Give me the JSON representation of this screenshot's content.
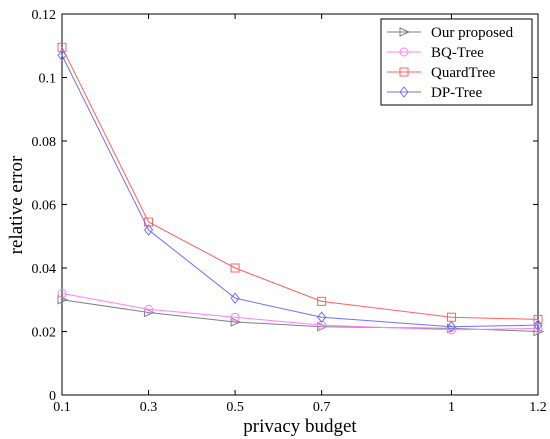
{
  "chart_data": {
    "type": "line",
    "xlabel": "privacy budget",
    "ylabel": "relative error",
    "x": [
      0.1,
      0.3,
      0.5,
      0.7,
      1,
      1.2
    ],
    "x_tick_labels": [
      "0.1",
      "0.3",
      "0.5",
      "0.7",
      "1",
      "1.2"
    ],
    "x_ticks": [
      0.1,
      0.3,
      0.5,
      0.7,
      1,
      1.2
    ],
    "xlim": [
      0.1,
      1.2
    ],
    "y_tick_labels": [
      "0",
      "0.02",
      "0.04",
      "0.06",
      "0.08",
      "0.1",
      "0.12"
    ],
    "y_ticks": [
      0,
      0.02,
      0.04,
      0.06,
      0.08,
      0.1,
      0.12
    ],
    "ylim": [
      0,
      0.12
    ],
    "grid": false,
    "legend_position": "top-right",
    "series": [
      {
        "name": "Our proposed",
        "color": "#808080",
        "marker": "triangle-right",
        "values": [
          0.03,
          0.026,
          0.023,
          0.0215,
          0.021,
          0.02
        ]
      },
      {
        "name": "BQ-Tree",
        "color": "#ff80ff",
        "marker": "circle",
        "values": [
          0.032,
          0.027,
          0.0245,
          0.022,
          0.0205,
          0.021
        ]
      },
      {
        "name": "QuardTree",
        "color": "#ff6060",
        "marker": "square",
        "values": [
          0.1095,
          0.0545,
          0.04,
          0.0295,
          0.0245,
          0.0238
        ]
      },
      {
        "name": "DP-Tree",
        "color": "#7070ff",
        "marker": "diamond",
        "values": [
          0.107,
          0.052,
          0.0305,
          0.0245,
          0.0215,
          0.022
        ]
      }
    ]
  }
}
